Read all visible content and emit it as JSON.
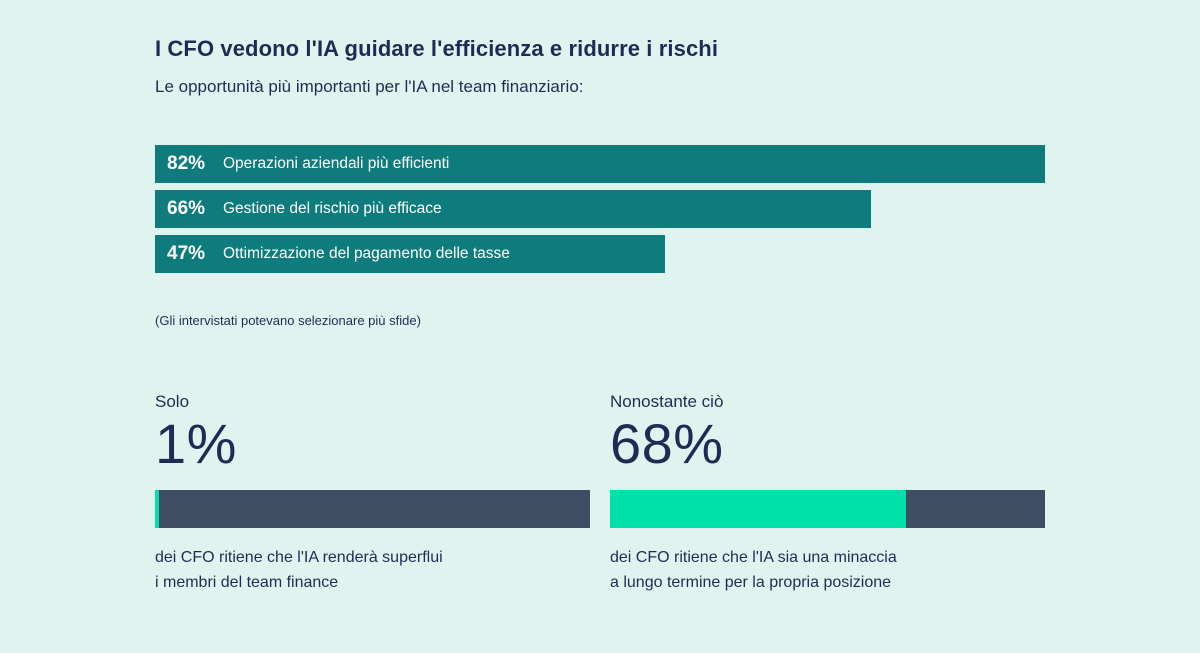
{
  "colors": {
    "background": "#e0f4ef",
    "teal_bar": "#0e7c7c",
    "navy_text": "#1e2c55",
    "slate_bar": "#3d4d63",
    "green_fill": "#00e0ab",
    "bar_text": "#ffffff"
  },
  "chart_data": [
    {
      "type": "bar",
      "orientation": "horizontal",
      "title": "I CFO vedono l'IA guidare l'efficienza e ridurre i rischi",
      "subtitle": "Le opportunità più importanti per l'IA nel team finanziario:",
      "categories": [
        "Operazioni aziendali più efficienti",
        "Gestione del rischio più efficace",
        "Ottimizzazione del pagamento delle tasse"
      ],
      "values": [
        82,
        66,
        47
      ],
      "labels": [
        "82%",
        "66%",
        "47%"
      ],
      "xlim": [
        0,
        100
      ],
      "grid": "off",
      "legend": "none",
      "note": "(Gli intervistati potevano selezionare più sfide)"
    },
    {
      "type": "bar",
      "subtype": "progress",
      "lead": "Solo",
      "value": 1,
      "label": "1%",
      "caption": "dei CFO ritiene che l'IA renderà superflui\ni membri del team finance"
    },
    {
      "type": "bar",
      "subtype": "progress",
      "lead": "Nonostante ciò",
      "value": 68,
      "label": "68%",
      "caption": "dei CFO ritiene che l'IA sia una minaccia\na lungo termine per la propria posizione"
    }
  ]
}
